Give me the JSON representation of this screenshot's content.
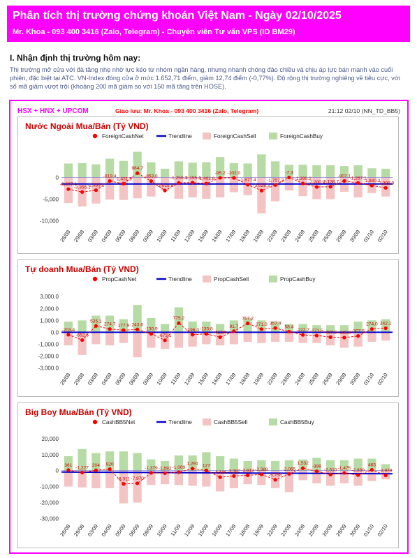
{
  "header": {
    "title": "Phân tích thị trường chứng khoán Việt Nam  -  Ngày 02/10/2025",
    "subtitle": "Mr. Khoa - 093 400 3416 (Zalo, Telegram) - Chuyên viên Tư vấn VPS (ID BM29)"
  },
  "section": {
    "title": "I. Nhận định thị trường hôm nay:",
    "paragraph": "Thị trường mở cửa với đà tăng nhẹ nhờ lực kéo từ nhóm ngân hàng, nhưng nhanh chóng đảo chiều và chịu áp lực bán mạnh vào cuối phiên, đặc biệt tại ATC. VN-Index đóng cửa ở mức 1.652,71 điểm, giảm 12,74 điểm (-0,77%). Độ rộng thị trường nghiêng về tiêu cực, với số mã giảm vượt trội (khoảng 200 mã giảm so với 150 mã tăng trên HOSE)."
  },
  "panel": {
    "exchanges": "HSX + HNX + UPCOM",
    "contact": "Giao lưu: Mr. Khoa - 093 400 3416 (Zalo, Telegram)",
    "timestamp": "21:12 02/10 (NN_TD_BB5)"
  },
  "colors": {
    "net": "#ff0000",
    "trend": "#0000cc",
    "sell": "#f4c4c4",
    "buy": "#b7dba4",
    "zero": "#0000cc",
    "header_bg": "#ff00ff"
  },
  "chart_data": [
    {
      "type": "bar",
      "title": "Nước Ngoài Mua/Bán (Tỷ VND)",
      "legend": [
        "ForeignCashNet",
        "Trendline",
        "ForeignCashSell",
        "ForeignCashBuy"
      ],
      "categories": [
        "28/08",
        "29/08",
        "03/09",
        "04/09",
        "05/09",
        "08/09",
        "09/09",
        "10/09",
        "11/09",
        "12/09",
        "15/09",
        "16/09",
        "17/09",
        "18/09",
        "19/09",
        "22/09",
        "23/09",
        "24/09",
        "25/09",
        "26/09",
        "29/09",
        "30/09",
        "01/10",
        "02/10"
      ],
      "yticks": [
        "0",
        "-5,000",
        "-10,000"
      ],
      "ytick_values": [
        0,
        -5000,
        -10000
      ],
      "ylim": [
        -11500,
        6800
      ],
      "series": [
        {
          "name": "ForeignCashBuy",
          "values": [
            3200,
            3300,
            3000,
            4300,
            3800,
            5900,
            3500,
            2000,
            3700,
            3400,
            3500,
            4700,
            3300,
            3200,
            5300,
            3700,
            2900,
            2900,
            2800,
            2800,
            2600,
            2800,
            2100,
            2000
          ]
        },
        {
          "name": "ForeignCashSell",
          "values": [
            -5900,
            -6700,
            -6000,
            -5100,
            -5200,
            -4800,
            -4400,
            -3000,
            -4900,
            -4600,
            -4900,
            -4600,
            -3400,
            -4100,
            -8300,
            -5500,
            -3000,
            -4300,
            -5000,
            -5000,
            -3300,
            -4600,
            -3600,
            -4400
          ]
        },
        {
          "name": "ForeignCashNet",
          "values": [
            -2697.4,
            -3355.1,
            -2939.2,
            -819.4,
            -1431.9,
            984.7,
            -853.8,
            -3015.4,
            -1250.1,
            -1195.1,
            -1401.8,
            -95.2,
            -102,
            -1677.4,
            -3028.3,
            -1757.3,
            -7.3,
            -1390.2,
            -2200.2,
            -2138.7,
            -807.1,
            -1267.1,
            -1880.2,
            -2399.9
          ]
        }
      ],
      "net_labels": [
        "-2,697.4",
        "-3,355.1",
        "-2,939.2",
        "-819.4",
        "-1,431.9",
        "984.7",
        "-853.8",
        "-3,015.4",
        "-1,250.1",
        "-1,195.1",
        "-1,401.8",
        "-95.2",
        "-102.0",
        "-1,677.4",
        "-3,028.3",
        "-1,757.3",
        "-7.3",
        "-1,390.2",
        "-2,200.2",
        "-2,138.7",
        "-807.1",
        "-1,267.1",
        "-1,880.2",
        "-2,399.9"
      ],
      "trend": [
        -1500,
        -1500
      ]
    },
    {
      "type": "bar",
      "title": "Tự doanh Mua/Bán (Tỷ VND)",
      "legend": [
        "PropCashNet",
        "Trendline",
        "PropCashSell",
        "PropCashBuy"
      ],
      "categories": [
        "28/08",
        "29/08",
        "03/09",
        "04/09",
        "05/09",
        "08/09",
        "09/09",
        "10/09",
        "11/09",
        "12/09",
        "15/09",
        "16/09",
        "17/09",
        "18/09",
        "19/09",
        "22/09",
        "23/09",
        "24/09",
        "25/09",
        "26/09",
        "29/09",
        "30/09",
        "01/10",
        "02/10"
      ],
      "yticks": [
        "3,000.0",
        "2,000.0",
        "1,000.0",
        "0.0",
        "-1,000.0",
        "-2,000.0",
        "-3,000.0"
      ],
      "ytick_values": [
        3000,
        2000,
        1000,
        0,
        -1000,
        -2000,
        -3000
      ],
      "ylim": [
        -3200,
        3600
      ],
      "series": [
        {
          "name": "PropCashBuy",
          "values": [
            900,
            1000,
            1400,
            1400,
            1100,
            2300,
            1200,
            700,
            2100,
            900,
            900,
            700,
            1000,
            1200,
            1000,
            900,
            700,
            700,
            600,
            600,
            600,
            900,
            1000,
            1100
          ]
        },
        {
          "name": "PropCashSell",
          "values": [
            -1100,
            -1900,
            -1000,
            -1100,
            -900,
            -2100,
            -1300,
            -1400,
            -1300,
            -1200,
            -1000,
            -1100,
            -1000,
            -800,
            -900,
            -800,
            -800,
            -900,
            -900,
            -1100,
            -1300,
            -1200,
            -800,
            -700
          ]
        },
        {
          "name": "PropCashNet",
          "values": [
            -203.4,
            -652.6,
            535.1,
            274.7,
            177.9,
            243.6,
            -130.9,
            -673.1,
            775.2,
            -196.3,
            -133.8,
            -413,
            91.7,
            757.2,
            271,
            357.4,
            58.4,
            -222.7,
            -271.5,
            -407.5,
            -445.8,
            -307.5,
            274,
            342.1
          ]
        }
      ],
      "net_labels": [
        "-203.4",
        "-652.6",
        "535.1",
        "274.7",
        "177.9",
        "243.6",
        "-130.9",
        "-673.1",
        "775.2",
        "-196.3",
        "-133.8",
        "-413.0",
        "91.7",
        "757.2",
        "271.0",
        "357.4",
        "58.4",
        "-222.7",
        "-271.5",
        "-407.5",
        "-445.8",
        "-307.5",
        "274.0",
        "342.1"
      ],
      "trend": [
        0,
        0
      ]
    },
    {
      "type": "bar",
      "title": "Big Boy Mua/Bán (Tỷ VND)",
      "legend": [
        "CashBB5Net",
        "Trendline",
        "CashBB5Sell",
        "CashBB5Buy"
      ],
      "categories": [
        "28/08",
        "29/08",
        "03/09",
        "04/09",
        "05/09",
        "08/09",
        "09/09",
        "10/09",
        "11/09",
        "12/09",
        "15/09",
        "16/09",
        "17/09",
        "18/09",
        "19/09",
        "22/09",
        "23/09",
        "24/09",
        "25/09",
        "26/09",
        "29/09",
        "30/09",
        "01/10",
        "02/10"
      ],
      "yticks": [
        "20,000",
        "10,000",
        "0",
        "-10,000",
        "-20,000",
        "-30,000"
      ],
      "ytick_values": [
        20000,
        10000,
        0,
        -10000,
        -20000,
        -30000
      ],
      "ylim": [
        -32000,
        23000
      ],
      "series": [
        {
          "name": "CashBB5Buy",
          "values": [
            9000,
            13500,
            11000,
            12000,
            12000,
            11000,
            7000,
            6000,
            9500,
            9500,
            11500,
            9000,
            7500,
            6000,
            6500,
            6000,
            6500,
            7000,
            8000,
            6500,
            6500,
            7500,
            7500,
            4000
          ]
        },
        {
          "name": "CashBB5Sell",
          "values": [
            -10000,
            -10500,
            -11000,
            -11000,
            -20500,
            -20000,
            -9000,
            -8500,
            -9000,
            -9500,
            -10000,
            -13000,
            -11000,
            -8500,
            -9000,
            -11000,
            -13500,
            -6000,
            -8000,
            -9500,
            -8000,
            -9500,
            -6500,
            -5500
          ]
        },
        {
          "name": "CashBB5Net",
          "values": [
            361,
            -1227,
            204,
            920,
            -8311,
            -7970,
            -1379,
            -1592,
            -1009,
            1291,
            127,
            -4146,
            -3382,
            -2913,
            -2388,
            -5758,
            -2065,
            1532,
            -399,
            -2510,
            -1475,
            -2830,
            463,
            -2978
          ]
        }
      ],
      "net_labels": [
        "361",
        "-1,227",
        "204",
        "920",
        "-8,311",
        "-7,970",
        "-1,379",
        "-1,592",
        "-1,009",
        "1,291",
        "127",
        "-4,146",
        "-3,382",
        "-2,913",
        "-2,388",
        "-5,758",
        "-2,065",
        "1,532",
        "-399",
        "-2,510",
        "-1,475",
        "-2,830",
        "463",
        "-2,978"
      ],
      "trend": [
        -900,
        -2000
      ]
    }
  ]
}
